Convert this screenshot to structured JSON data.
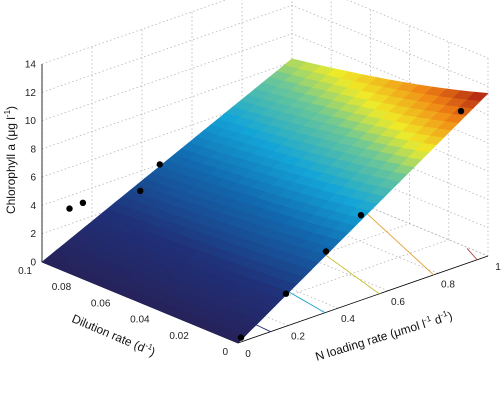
{
  "chart_data": {
    "type": "surface",
    "x_axis": {
      "label_prefix": "N loading rate (μmol l",
      "label_exp1": "-1",
      "label_exp2": "-1",
      "label_suffix": ")",
      "ticks": [
        "0",
        "0.2",
        "0.4",
        "0.6",
        "0.8",
        "1"
      ],
      "range": [
        0,
        1
      ]
    },
    "y_axis": {
      "label_prefix": "Dilution rate (d",
      "label_exp": "-1",
      "label_suffix": ")",
      "ticks": [
        "0",
        "0.02",
        "0.04",
        "0.06",
        "0.08",
        "0.1"
      ],
      "range": [
        0,
        0.1
      ]
    },
    "z_axis": {
      "label_prefix": "Chlorophyll a (μg l",
      "label_exp": "-1",
      "label_suffix": ")",
      "ticks": [
        "0",
        "2",
        "4",
        "6",
        "8",
        "10",
        "12",
        "14"
      ],
      "range": [
        0,
        14
      ]
    },
    "surface": {
      "model": "chl = 11.5 * N / (1 + 4 * D)",
      "corners": [
        {
          "N": 0,
          "D": 0,
          "chl": 0
        },
        {
          "N": 1,
          "D": 0,
          "chl": 11.5
        },
        {
          "N": 1,
          "D": 0.1,
          "chl": 8.2
        },
        {
          "N": 0,
          "D": 0.1,
          "chl": 0
        }
      ],
      "colormap": "jet"
    },
    "contours": {
      "projection": "floor",
      "levels": [
        1.5,
        4,
        6.5,
        9,
        11
      ]
    },
    "points": [
      {
        "N": 0.11,
        "D": 0.1,
        "chl": 3.1
      },
      {
        "N": 0.14,
        "D": 0.097,
        "chl": 3.5
      },
      {
        "N": 0.26,
        "D": 0.083,
        "chl": 4.4
      },
      {
        "N": 0.33,
        "D": 0.082,
        "chl": 5.9
      },
      {
        "N": 0.02,
        "D": 0.001,
        "chl": 0.2
      },
      {
        "N": 0.2,
        "D": 0.001,
        "chl": 2.2
      },
      {
        "N": 0.36,
        "D": 0.001,
        "chl": 4.2
      },
      {
        "N": 0.5,
        "D": 0.001,
        "chl": 5.9
      },
      {
        "N": 0.9,
        "D": 0.001,
        "chl": 10.8
      }
    ],
    "grid": true
  }
}
